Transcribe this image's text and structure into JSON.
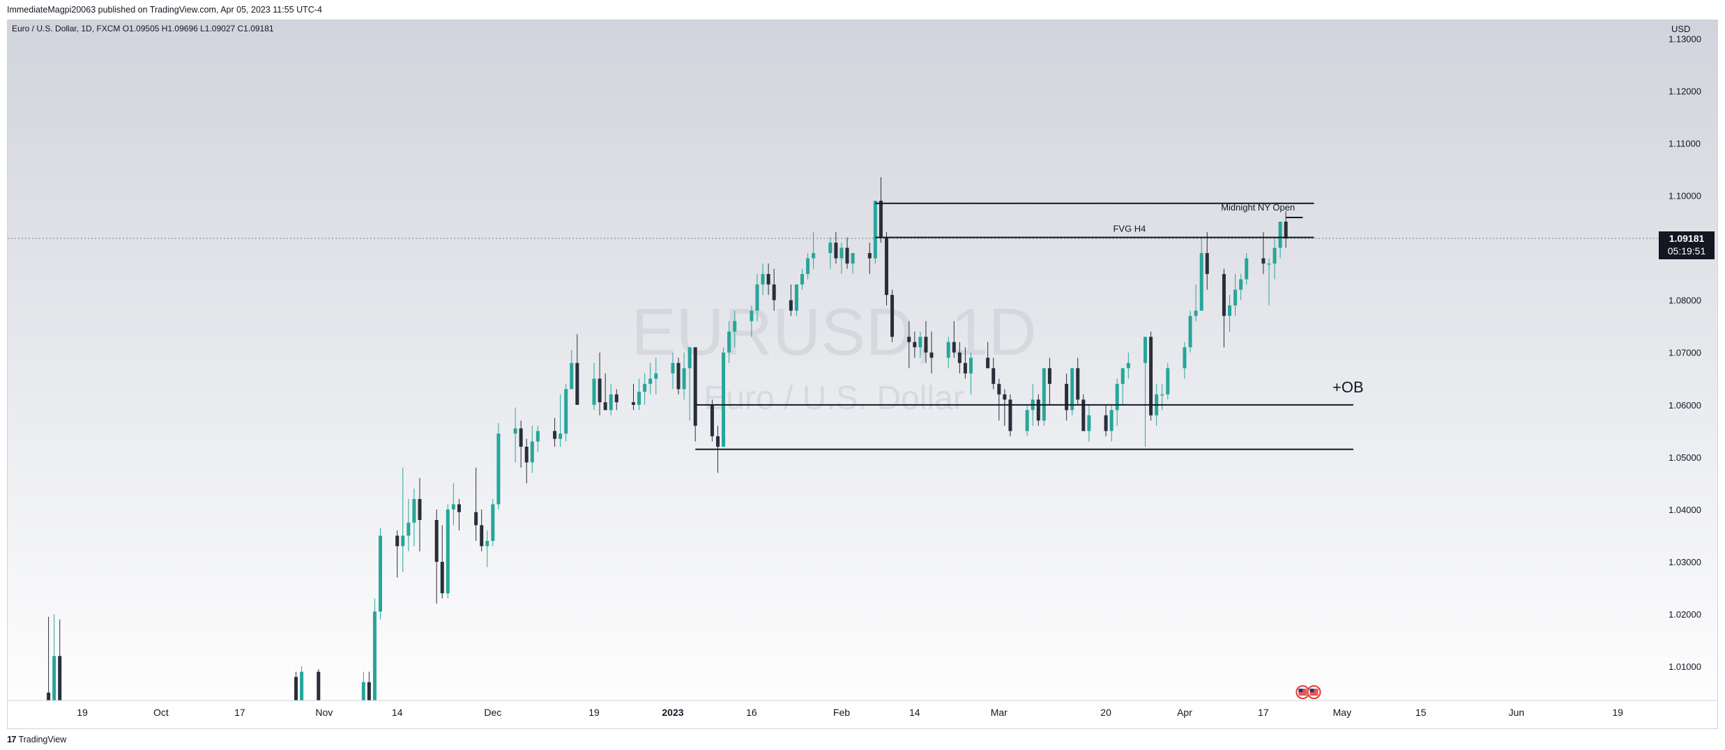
{
  "header": {
    "publish_line": "ImmediateMagpi20063 published on TradingView.com, Apr 05, 2023 11:55 UTC-4"
  },
  "legend": {
    "text": "Euro / U.S. Dollar, 1D, FXCM  O1.09505  H1.09696  L1.09027  C1.09181"
  },
  "watermark": {
    "symbol": "EURUSD, 1D",
    "description": "Euro / U.S. Dollar"
  },
  "price_scale": {
    "currency": "USD",
    "last_price": "1.09181",
    "countdown": "05:19:51"
  },
  "footer": {
    "brand": "TradingView",
    "logo_glyph": "17"
  },
  "colors": {
    "up": "#26a69a",
    "down": "#2a2e39",
    "bg_top": "#d1d4dc",
    "bg_bottom": "#ffffff",
    "text": "#131722"
  },
  "chart_data": {
    "type": "candlestick",
    "symbol": "EURUSD",
    "interval": "1D",
    "ylim": [
      1.0035,
      1.1335
    ],
    "y_ticks": [
      "1.13000",
      "1.12000",
      "1.11000",
      "1.10000",
      "1.09000",
      "1.08000",
      "1.07000",
      "1.06000",
      "1.05000",
      "1.04000",
      "1.03000",
      "1.02000",
      "1.01000"
    ],
    "x_ticks": [
      {
        "label": "19",
        "date": "2022-09-19",
        "bold": false
      },
      {
        "label": "Oct",
        "date": "2022-10-03",
        "bold": false
      },
      {
        "label": "17",
        "date": "2022-10-17",
        "bold": false
      },
      {
        "label": "Nov",
        "date": "2022-11-01",
        "bold": false
      },
      {
        "label": "14",
        "date": "2022-11-14",
        "bold": false
      },
      {
        "label": "Dec",
        "date": "2022-12-01",
        "bold": false
      },
      {
        "label": "19",
        "date": "2022-12-19",
        "bold": false
      },
      {
        "label": "2023",
        "date": "2023-01-02",
        "bold": true
      },
      {
        "label": "16",
        "date": "2023-01-16",
        "bold": false
      },
      {
        "label": "Feb",
        "date": "2023-02-01",
        "bold": false
      },
      {
        "label": "14",
        "date": "2023-02-14",
        "bold": false
      },
      {
        "label": "Mar",
        "date": "2023-03-01",
        "bold": false
      },
      {
        "label": "20",
        "date": "2023-03-20",
        "bold": false
      },
      {
        "label": "Apr",
        "date": "2023-04-03",
        "bold": false
      },
      {
        "label": "17",
        "date": "2023-04-17",
        "bold": false
      },
      {
        "label": "May",
        "date": "2023-05-01",
        "bold": false
      },
      {
        "label": "15",
        "date": "2023-05-15",
        "bold": false
      },
      {
        "label": "Jun",
        "date": "2023-06-01",
        "bold": false
      },
      {
        "label": "19",
        "date": "2023-06-19",
        "bold": false
      }
    ],
    "candles": [
      [
        "2022-09-13",
        1.005,
        1.0195,
        1.001,
        1.002
      ],
      [
        "2022-09-14",
        1.0,
        1.02,
        0.997,
        1.012
      ],
      [
        "2022-09-15",
        1.012,
        1.019,
        0.999,
        1.0
      ],
      [
        "2022-10-27",
        1.008,
        1.009,
        0.995,
        0.997
      ],
      [
        "2022-10-28",
        0.997,
        1.01,
        0.994,
        1.009
      ],
      [
        "2022-10-31",
        1.009,
        1.0095,
        0.993,
        0.995
      ],
      [
        "2022-11-08",
        0.995,
        1.009,
        0.993,
        1.007
      ],
      [
        "2022-11-09",
        1.007,
        1.009,
        0.999,
        1.001
      ],
      [
        "2022-11-10",
        1.001,
        1.023,
        1.0,
        1.0205
      ],
      [
        "2022-11-11",
        1.0205,
        1.0365,
        1.019,
        1.035
      ],
      [
        "2022-11-14",
        1.035,
        1.036,
        1.027,
        1.033
      ],
      [
        "2022-11-15",
        1.033,
        1.048,
        1.028,
        1.035
      ],
      [
        "2022-11-16",
        1.035,
        1.042,
        1.032,
        1.0375
      ],
      [
        "2022-11-17",
        1.0375,
        1.044,
        1.033,
        1.042
      ],
      [
        "2022-11-18",
        1.042,
        1.046,
        1.032,
        1.038
      ],
      [
        "2022-11-21",
        1.038,
        1.04,
        1.022,
        1.03
      ],
      [
        "2022-11-22",
        1.03,
        1.037,
        1.023,
        1.024
      ],
      [
        "2022-11-23",
        1.024,
        1.041,
        1.023,
        1.04
      ],
      [
        "2022-11-24",
        1.04,
        1.045,
        1.037,
        1.041
      ],
      [
        "2022-11-25",
        1.041,
        1.042,
        1.036,
        1.0395
      ],
      [
        "2022-11-28",
        1.0395,
        1.048,
        1.034,
        1.037
      ],
      [
        "2022-11-29",
        1.037,
        1.04,
        1.032,
        1.033
      ],
      [
        "2022-11-30",
        1.033,
        1.036,
        1.029,
        1.034
      ],
      [
        "2022-12-01",
        1.034,
        1.042,
        1.033,
        1.041
      ],
      [
        "2022-12-02",
        1.041,
        1.0565,
        1.04,
        1.0545
      ],
      [
        "2022-12-05",
        1.0545,
        1.0595,
        1.049,
        1.0555
      ],
      [
        "2022-12-06",
        1.0555,
        1.057,
        1.048,
        1.052
      ],
      [
        "2022-12-07",
        1.052,
        1.0535,
        1.045,
        1.049
      ],
      [
        "2022-12-08",
        1.049,
        1.056,
        1.047,
        1.053
      ],
      [
        "2022-12-09",
        1.053,
        1.056,
        1.051,
        1.055
      ],
      [
        "2022-12-12",
        1.055,
        1.0575,
        1.052,
        1.0535
      ],
      [
        "2022-12-13",
        1.0535,
        1.062,
        1.052,
        1.0545
      ],
      [
        "2022-12-14",
        1.0545,
        1.064,
        1.053,
        1.063
      ],
      [
        "2022-12-15",
        1.063,
        1.0705,
        1.064,
        1.068
      ],
      [
        "2022-12-16",
        1.068,
        1.0735,
        1.06,
        1.06
      ],
      [
        "2022-12-19",
        1.06,
        1.068,
        1.059,
        1.065
      ],
      [
        "2022-12-20",
        1.065,
        1.07,
        1.058,
        1.0605
      ],
      [
        "2022-12-21",
        1.0605,
        1.066,
        1.059,
        1.059
      ],
      [
        "2022-12-22",
        1.059,
        1.064,
        1.058,
        1.062
      ],
      [
        "2022-12-23",
        1.062,
        1.063,
        1.059,
        1.0605
      ],
      [
        "2022-12-26",
        1.0605,
        1.064,
        1.059,
        1.06
      ],
      [
        "2022-12-27",
        1.06,
        1.065,
        1.059,
        1.0625
      ],
      [
        "2022-12-28",
        1.0625,
        1.066,
        1.06,
        1.064
      ],
      [
        "2022-12-29",
        1.064,
        1.068,
        1.062,
        1.065
      ],
      [
        "2022-12-30",
        1.065,
        1.069,
        1.062,
        1.066
      ],
      [
        "2023-01-02",
        1.066,
        1.07,
        1.063,
        1.068
      ],
      [
        "2023-01-03",
        1.068,
        1.069,
        1.062,
        1.063
      ],
      [
        "2023-01-04",
        1.063,
        1.07,
        1.061,
        1.067
      ],
      [
        "2023-01-05",
        1.067,
        1.071,
        1.057,
        1.071
      ],
      [
        "2023-01-06",
        1.071,
        1.071,
        1.053,
        1.056
      ],
      [
        "2023-01-09",
        1.06,
        1.061,
        1.053,
        1.054
      ],
      [
        "2023-01-10",
        1.054,
        1.056,
        1.047,
        1.052
      ],
      [
        "2023-01-11",
        1.052,
        1.071,
        1.052,
        1.07
      ],
      [
        "2023-01-12",
        1.07,
        1.076,
        1.068,
        1.074
      ],
      [
        "2023-01-13",
        1.074,
        1.078,
        1.071,
        1.076
      ],
      [
        "2023-01-16",
        1.076,
        1.079,
        1.073,
        1.078
      ],
      [
        "2023-01-17",
        1.078,
        1.085,
        1.076,
        1.083
      ],
      [
        "2023-01-18",
        1.083,
        1.087,
        1.081,
        1.085
      ],
      [
        "2023-01-19",
        1.085,
        1.087,
        1.081,
        1.083
      ],
      [
        "2023-01-20",
        1.083,
        1.086,
        1.078,
        1.08
      ],
      [
        "2023-01-23",
        1.08,
        1.083,
        1.077,
        1.078
      ],
      [
        "2023-01-24",
        1.078,
        1.083,
        1.077,
        1.083
      ],
      [
        "2023-01-25",
        1.083,
        1.086,
        1.082,
        1.085
      ],
      [
        "2023-01-26",
        1.085,
        1.089,
        1.084,
        1.088
      ],
      [
        "2023-01-27",
        1.088,
        1.093,
        1.086,
        1.089
      ],
      [
        "2023-01-30",
        1.089,
        1.092,
        1.086,
        1.091
      ],
      [
        "2023-01-31",
        1.091,
        1.093,
        1.087,
        1.088
      ],
      [
        "2023-02-01",
        1.088,
        1.091,
        1.085,
        1.09
      ],
      [
        "2023-02-02",
        1.09,
        1.092,
        1.086,
        1.087
      ],
      [
        "2023-02-03",
        1.087,
        1.089,
        1.085,
        1.089
      ],
      [
        "2023-02-06",
        1.089,
        1.091,
        1.085,
        1.088
      ],
      [
        "2023-02-07",
        1.088,
        1.099,
        1.087,
        1.099
      ],
      [
        "2023-02-08",
        1.099,
        1.1035,
        1.091,
        1.092
      ],
      [
        "2023-02-09",
        1.092,
        1.093,
        1.079,
        1.081
      ],
      [
        "2023-02-10",
        1.081,
        1.082,
        1.072,
        1.073
      ],
      [
        "2023-02-13",
        1.073,
        1.076,
        1.067,
        1.072
      ],
      [
        "2023-02-14",
        1.072,
        1.074,
        1.069,
        1.071
      ],
      [
        "2023-02-15",
        1.071,
        1.074,
        1.069,
        1.073
      ],
      [
        "2023-02-16",
        1.073,
        1.076,
        1.068,
        1.07
      ],
      [
        "2023-02-17",
        1.07,
        1.074,
        1.066,
        1.069
      ],
      [
        "2023-02-20",
        1.069,
        1.073,
        1.067,
        1.072
      ],
      [
        "2023-02-21",
        1.072,
        1.076,
        1.069,
        1.07
      ],
      [
        "2023-02-22",
        1.07,
        1.072,
        1.066,
        1.068
      ],
      [
        "2023-02-23",
        1.068,
        1.071,
        1.065,
        1.066
      ],
      [
        "2023-02-24",
        1.066,
        1.07,
        1.062,
        1.069
      ],
      [
        "2023-02-27",
        1.069,
        1.072,
        1.067,
        1.067
      ],
      [
        "2023-02-28",
        1.067,
        1.069,
        1.063,
        1.064
      ],
      [
        "2023-03-01",
        1.064,
        1.065,
        1.057,
        1.062
      ],
      [
        "2023-03-02",
        1.062,
        1.063,
        1.056,
        1.061
      ],
      [
        "2023-03-03",
        1.061,
        1.062,
        1.054,
        1.055
      ],
      [
        "2023-03-06",
        1.055,
        1.06,
        1.054,
        1.059
      ],
      [
        "2023-03-07",
        1.059,
        1.064,
        1.056,
        1.061
      ],
      [
        "2023-03-08",
        1.061,
        1.062,
        1.056,
        1.057
      ],
      [
        "2023-03-09",
        1.057,
        1.067,
        1.056,
        1.067
      ],
      [
        "2023-03-10",
        1.067,
        1.069,
        1.06,
        1.064
      ],
      [
        "2023-03-13",
        1.064,
        1.066,
        1.057,
        1.059
      ],
      [
        "2023-03-14",
        1.059,
        1.067,
        1.058,
        1.067
      ],
      [
        "2023-03-15",
        1.067,
        1.069,
        1.06,
        1.061
      ],
      [
        "2023-03-16",
        1.061,
        1.062,
        1.055,
        1.055
      ],
      [
        "2023-03-17",
        1.055,
        1.06,
        1.053,
        1.058
      ],
      [
        "2023-03-20",
        1.058,
        1.06,
        1.054,
        1.055
      ],
      [
        "2023-03-21",
        1.055,
        1.06,
        1.053,
        1.059
      ],
      [
        "2023-03-22",
        1.059,
        1.065,
        1.056,
        1.064
      ],
      [
        "2023-03-23",
        1.064,
        1.067,
        1.06,
        1.067
      ],
      [
        "2023-03-24",
        1.067,
        1.07,
        1.065,
        1.068
      ],
      [
        "2023-03-27",
        1.068,
        1.073,
        1.052,
        1.073
      ],
      [
        "2023-03-28",
        1.073,
        1.074,
        1.057,
        1.058
      ],
      [
        "2023-03-29",
        1.058,
        1.064,
        1.056,
        1.062
      ],
      [
        "2023-03-30",
        1.062,
        1.064,
        1.059,
        1.062
      ],
      [
        "2023-03-31",
        1.062,
        1.068,
        1.061,
        1.067
      ],
      [
        "2023-04-03",
        1.067,
        1.072,
        1.065,
        1.071
      ],
      [
        "2023-04-04",
        1.071,
        1.078,
        1.07,
        1.077
      ],
      [
        "2023-04-05",
        1.077,
        1.083,
        1.076,
        1.078
      ],
      [
        "2023-04-06",
        1.078,
        1.092,
        1.078,
        1.089
      ],
      [
        "2023-04-07",
        1.089,
        1.093,
        1.082,
        1.085
      ],
      [
        "2023-04-10",
        1.085,
        1.086,
        1.071,
        1.077
      ],
      [
        "2023-04-11",
        1.077,
        1.081,
        1.074,
        1.079
      ],
      [
        "2023-04-12",
        1.079,
        1.085,
        1.077,
        1.082
      ],
      [
        "2023-04-13",
        1.082,
        1.085,
        1.08,
        1.084
      ],
      [
        "2023-04-14",
        1.084,
        1.089,
        1.083,
        1.088
      ],
      [
        "2023-04-17",
        1.088,
        1.093,
        1.085,
        1.087
      ],
      [
        "2023-04-18",
        1.087,
        1.088,
        1.079,
        1.087
      ],
      [
        "2023-04-19",
        1.087,
        1.092,
        1.084,
        1.09
      ],
      [
        "2023-04-20",
        1.09,
        1.095,
        1.088,
        1.095
      ],
      [
        "2023-04-21",
        1.095,
        1.097,
        1.09,
        1.0918
      ]
    ],
    "horizontal_lines": [
      {
        "start": "2023-02-07",
        "end": "2023-04-26",
        "price": 1.0985
      },
      {
        "start": "2023-02-07",
        "end": "2023-04-26",
        "price": 1.092,
        "label": "FVG H4"
      },
      {
        "start": "2023-04-21",
        "end": "2023-04-24",
        "price": 1.0958,
        "label": "Midnight NY Open"
      },
      {
        "start": "2023-01-06",
        "end": "2023-05-03",
        "price": 1.06,
        "label": "+OB"
      },
      {
        "start": "2023-01-06",
        "end": "2023-05-03",
        "price": 1.0515
      }
    ],
    "last_price_line": 1.09181,
    "event_markers": [
      "2023-04-24",
      "2023-04-26"
    ]
  }
}
